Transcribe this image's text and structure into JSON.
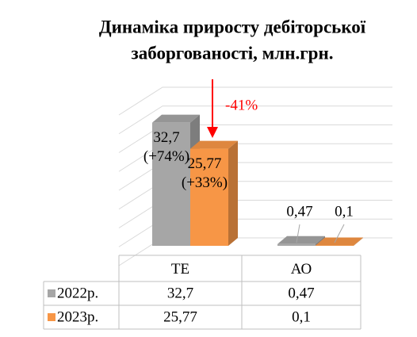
{
  "chart_data": {
    "type": "bar3d",
    "title": [
      "Динаміка приросту дебіторської",
      "заборгованості, млн.грн."
    ],
    "annotation": "-41%",
    "categories": [
      "ТЕ",
      "АО"
    ],
    "series": [
      {
        "name": "2022р.",
        "color": "#a6a6a6",
        "values": [
          32.7,
          0.47
        ],
        "value_labels": [
          "32,7",
          "0,47"
        ],
        "changes": [
          "(+74%)",
          null
        ]
      },
      {
        "name": "2023р.",
        "color": "#f79646",
        "values": [
          25.77,
          0.1
        ],
        "value_labels": [
          "25,77",
          "0,1"
        ],
        "changes": [
          "(+33%)",
          null
        ]
      }
    ],
    "ylim": [
      0,
      40
    ],
    "yticks": [
      0,
      5,
      10,
      15,
      20,
      25,
      30,
      35,
      40
    ],
    "grid": true,
    "data_table": true
  }
}
